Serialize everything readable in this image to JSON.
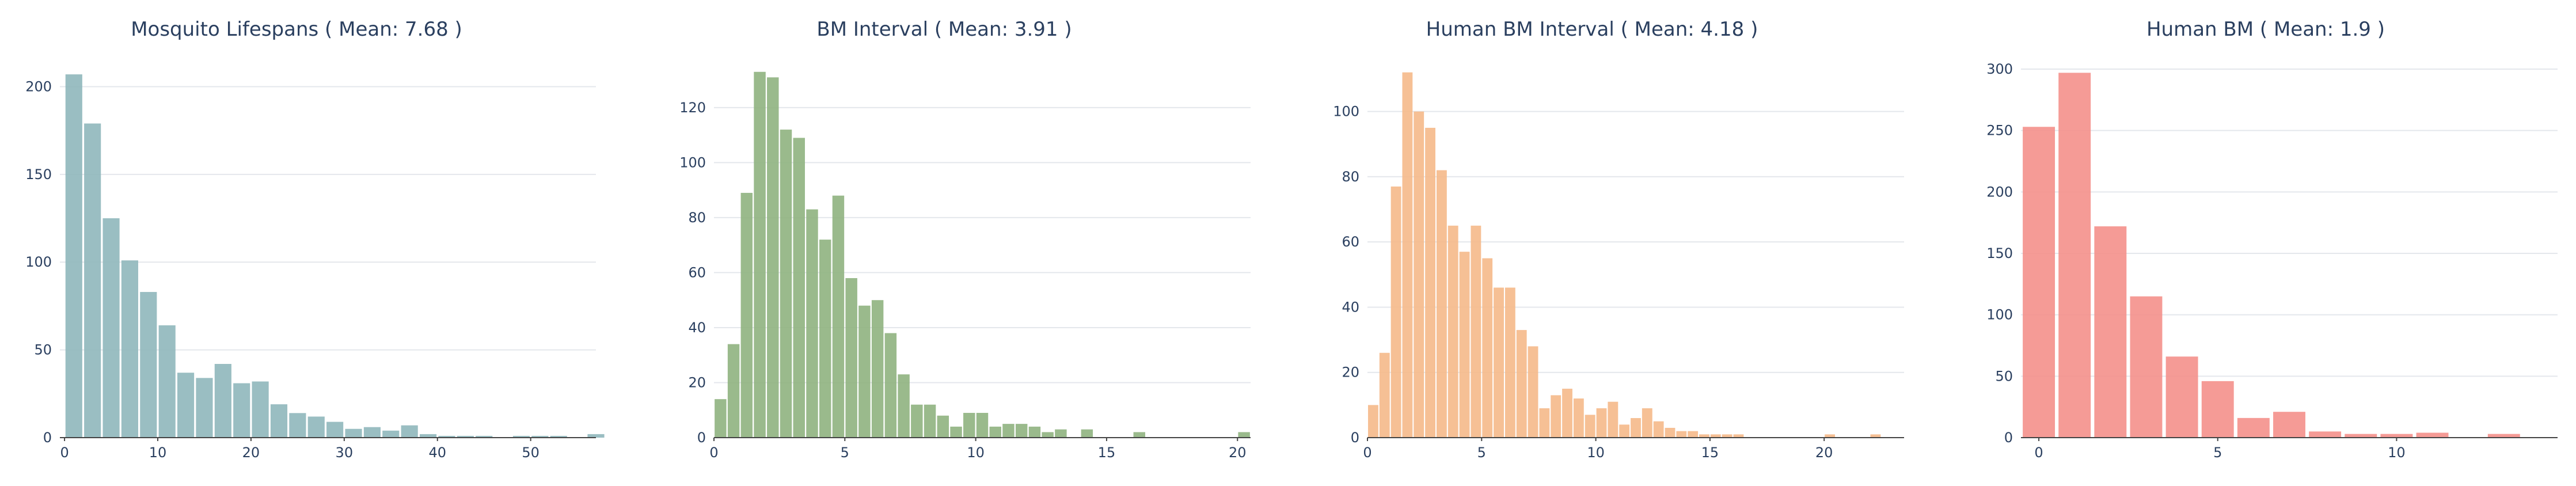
{
  "chart_data": [
    {
      "type": "bar",
      "title": "Mosquito Lifespans ( Mean:  7.68 )",
      "xlabel": "",
      "ylabel": "",
      "color": "#8fb7bb",
      "bin_start": 0,
      "bin_width": 2,
      "values": [
        207,
        179,
        125,
        101,
        83,
        64,
        37,
        34,
        42,
        31,
        32,
        19,
        14,
        12,
        9,
        5,
        6,
        4,
        7,
        2,
        1,
        1,
        1,
        0,
        1,
        1,
        1,
        0,
        2
      ],
      "xlim": [
        -0.5,
        57
      ],
      "ylim": [
        0,
        210
      ],
      "xticks": [
        0,
        10,
        20,
        30,
        40,
        50
      ],
      "yticks": [
        0,
        50,
        100,
        150,
        200
      ]
    },
    {
      "type": "bar",
      "title": "BM Interval ( Mean:  3.91 )",
      "xlabel": "",
      "ylabel": "",
      "color": "#8fb37f",
      "bin_start": 0,
      "bin_width": 0.5,
      "values": [
        14,
        34,
        89,
        133,
        131,
        112,
        109,
        83,
        72,
        88,
        58,
        48,
        50,
        38,
        23,
        12,
        12,
        8,
        4,
        9,
        9,
        4,
        5,
        5,
        4,
        2,
        3,
        0,
        3,
        0,
        0,
        0,
        2,
        0,
        0,
        0,
        0,
        0,
        0,
        0,
        2
      ],
      "xlim": [
        0,
        20.5
      ],
      "ylim": [
        0,
        134
      ],
      "xticks": [
        0,
        5,
        10,
        15,
        20
      ],
      "yticks": [
        0,
        20,
        40,
        60,
        80,
        100,
        120
      ]
    },
    {
      "type": "bar",
      "title": "Human BM Interval ( Mean:  4.18 )",
      "xlabel": "",
      "ylabel": "",
      "color": "#f5b98a",
      "bin_start": 0,
      "bin_width": 0.5,
      "values": [
        10,
        26,
        77,
        112,
        100,
        95,
        82,
        65,
        57,
        65,
        55,
        46,
        46,
        33,
        28,
        9,
        13,
        15,
        12,
        7,
        9,
        11,
        4,
        6,
        9,
        5,
        3,
        2,
        2,
        1,
        1,
        1,
        1,
        0,
        0,
        0,
        0,
        0,
        0,
        0,
        1,
        0,
        0,
        0,
        1,
        0,
        0
      ],
      "xlim": [
        0,
        23.5
      ],
      "ylim": [
        0,
        113
      ],
      "xticks": [
        0,
        5,
        10,
        15,
        20
      ],
      "yticks": [
        0,
        20,
        40,
        60,
        80,
        100
      ]
    },
    {
      "type": "bar",
      "title": "Human BM ( Mean:  1.9 )",
      "xlabel": "",
      "ylabel": "",
      "color": "#f4908b",
      "bin_start": -0.5,
      "bin_width": 1,
      "values": [
        253,
        297,
        172,
        115,
        66,
        46,
        16,
        21,
        5,
        3,
        3,
        4,
        0,
        3,
        0
      ],
      "xlim": [
        -0.5,
        14.5
      ],
      "ylim": [
        0,
        300
      ],
      "xticks": [
        0,
        5,
        10
      ],
      "yticks": [
        0,
        50,
        100,
        150,
        200,
        250,
        300
      ]
    }
  ]
}
